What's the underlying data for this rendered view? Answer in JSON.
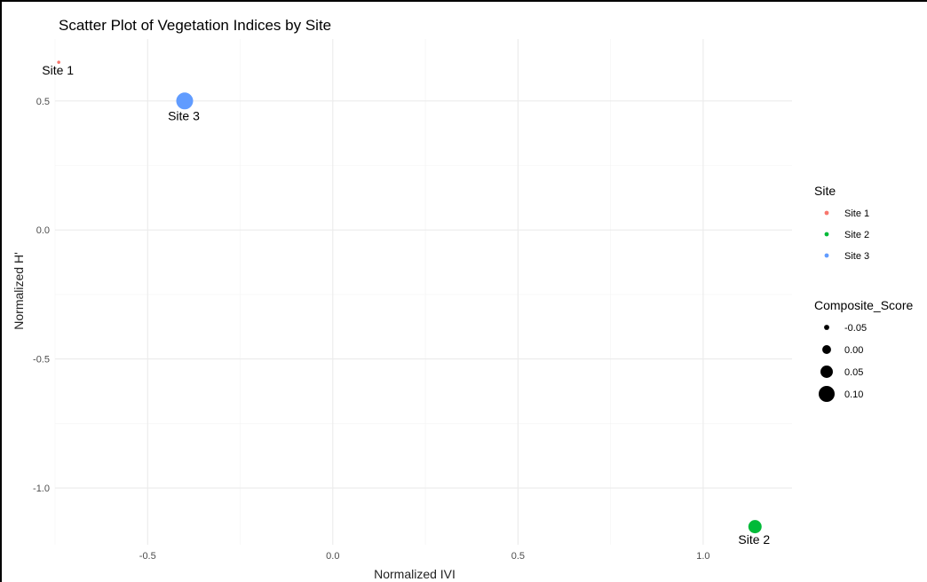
{
  "chart_data": {
    "type": "scatter",
    "title": "Scatter Plot of Vegetation Indices by Site",
    "xlabel": "Normalized IVI",
    "ylabel": "Normalized H'",
    "xlim": [
      -0.75,
      1.24
    ],
    "ylim": [
      -1.22,
      0.74
    ],
    "xticks": [
      -0.5,
      0.0,
      0.5,
      1.0
    ],
    "xtick_labels": [
      "-0.5",
      "0.0",
      "0.5",
      "1.0"
    ],
    "yticks": [
      -1.0,
      -0.5,
      0.0,
      0.5
    ],
    "ytick_labels": [
      "-1.0",
      "-0.5",
      "0.0",
      "0.5"
    ],
    "grid": true,
    "points": [
      {
        "site": "Site 1",
        "x": -0.74,
        "y": 0.65,
        "composite_score": -0.09,
        "label": "Site 1",
        "color": "#F8766D"
      },
      {
        "site": "Site 2",
        "x": 1.14,
        "y": -1.15,
        "composite_score": 0.05,
        "label": "Site 2",
        "color": "#00BA38"
      },
      {
        "site": "Site 3",
        "x": -0.4,
        "y": 0.5,
        "composite_score": 0.1,
        "label": "Site 3",
        "color": "#619CFF"
      }
    ],
    "legend": {
      "position": "right",
      "color_title": "Site",
      "color_entries": [
        {
          "label": "Site 1",
          "color": "#F8766D"
        },
        {
          "label": "Site 2",
          "color": "#00BA38"
        },
        {
          "label": "Site 3",
          "color": "#619CFF"
        }
      ],
      "size_title": "Composite_Score",
      "size_entries": [
        {
          "label": "-0.05",
          "value": -0.05
        },
        {
          "label": "0.00",
          "value": 0.0
        },
        {
          "label": "0.05",
          "value": 0.05
        },
        {
          "label": "0.10",
          "value": 0.1
        }
      ]
    }
  }
}
